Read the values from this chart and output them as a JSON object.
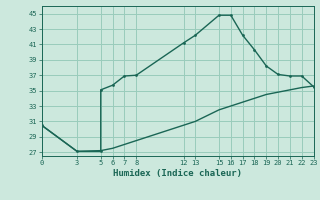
{
  "xlabel": "Humidex (Indice chaleur)",
  "ylabel": "",
  "bg_color": "#cce8dd",
  "grid_color": "#99ccbb",
  "line_color": "#1a6655",
  "curve1_x": [
    0,
    3,
    5,
    5,
    6,
    7,
    8,
    12,
    13,
    15,
    16,
    17,
    18,
    19,
    20,
    21,
    22,
    23
  ],
  "curve1_y": [
    30.5,
    27.1,
    27.1,
    35.1,
    35.7,
    36.9,
    37.0,
    41.2,
    42.2,
    44.8,
    44.8,
    42.2,
    40.3,
    38.2,
    37.1,
    36.9,
    36.9,
    35.5
  ],
  "curve2_x": [
    0,
    3,
    5,
    6,
    7,
    8,
    12,
    13,
    15,
    16,
    17,
    18,
    19,
    20,
    21,
    22,
    23
  ],
  "curve2_y": [
    30.5,
    27.1,
    27.2,
    27.5,
    28.0,
    28.5,
    30.5,
    31.0,
    32.5,
    33.0,
    33.5,
    34.0,
    34.5,
    34.8,
    35.1,
    35.4,
    35.6
  ],
  "xticks": [
    0,
    3,
    5,
    6,
    7,
    8,
    12,
    13,
    15,
    16,
    17,
    18,
    19,
    20,
    21,
    22,
    23
  ],
  "yticks": [
    27,
    29,
    31,
    33,
    35,
    37,
    39,
    41,
    43,
    45
  ],
  "xlim": [
    0,
    23
  ],
  "ylim": [
    26.5,
    46.0
  ]
}
